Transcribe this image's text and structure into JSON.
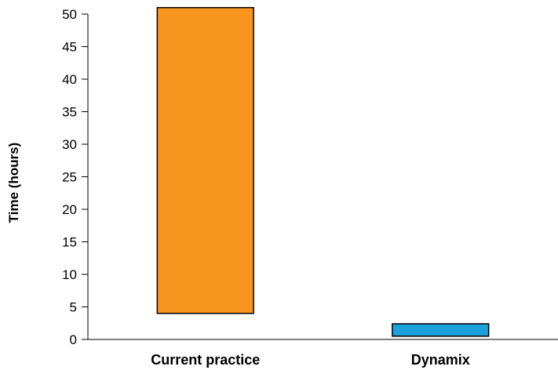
{
  "chart_data": {
    "type": "bar",
    "title": "",
    "xlabel": "",
    "ylabel": "Time (hours)",
    "ylim": [
      0,
      50
    ],
    "yticks": [
      0,
      5,
      10,
      15,
      20,
      25,
      30,
      35,
      40,
      45,
      50
    ],
    "grid": false,
    "legend": "none",
    "categories": [
      "Current practice",
      "Dynamix"
    ],
    "bars": [
      {
        "category": "Current practice",
        "low": 4,
        "high": 51,
        "color": "#F7941D"
      },
      {
        "category": "Dynamix",
        "low": 0.5,
        "high": 2.4,
        "color": "#1BA1DB"
      }
    ]
  }
}
